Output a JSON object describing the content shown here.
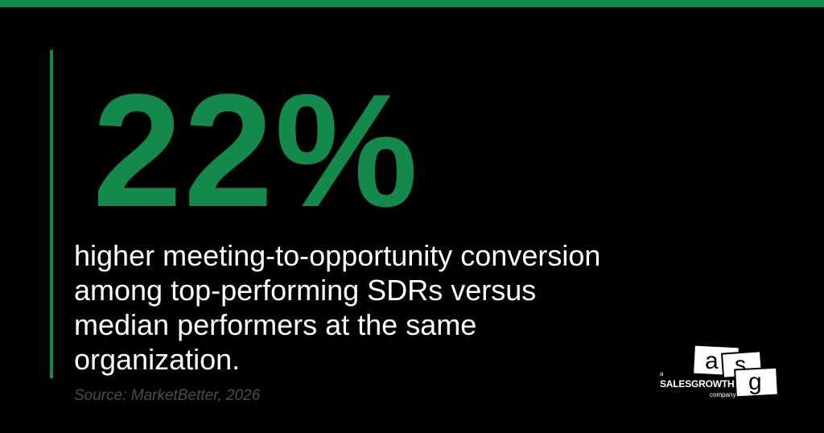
{
  "stat": {
    "value": "22%",
    "description": "higher meeting-to-opportunity conversion among top-performing SDRs versus median performers at the same organization."
  },
  "source": "Source: MarketBetter, 2026",
  "logo": {
    "letters": [
      "a",
      "s",
      "g"
    ],
    "prefix": "a",
    "name": "SALESGROWTH",
    "suffix": "company"
  },
  "colors": {
    "background": "#000000",
    "accent": "#128a4c",
    "text": "#ffffff",
    "source": "#4d4d4d"
  }
}
